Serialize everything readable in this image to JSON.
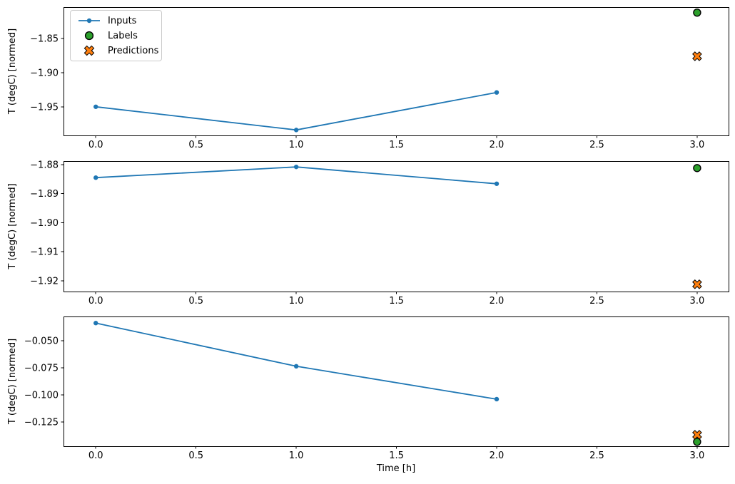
{
  "figure": {
    "background": "#ffffff",
    "colors": {
      "line": "#1f77b4",
      "labels": "#2ca02c",
      "predictions": "#ff7f0e",
      "edge": "#000000",
      "spine": "#000000",
      "text": "#000000",
      "legend_border": "#cbcbcb"
    },
    "legend": {
      "position": "upper-left",
      "items": [
        {
          "label": "Inputs",
          "marker": "line-dot",
          "color": "#1f77b4"
        },
        {
          "label": "Labels",
          "marker": "circle",
          "color": "#2ca02c",
          "edge": "#000000"
        },
        {
          "label": "Predictions",
          "marker": "X",
          "color": "#ff7f0e",
          "edge": "#000000"
        }
      ]
    }
  },
  "chart_data": [
    {
      "type": "line",
      "ylabel": "T (degC) [normed]",
      "xlabel": "",
      "xlim": [
        -0.161,
        3.157
      ],
      "ylim": [
        -1.992,
        -1.804
      ],
      "grid": false,
      "xticks": [
        {
          "v": 0,
          "label": "0.0"
        },
        {
          "v": 0.5,
          "label": "0.5"
        },
        {
          "v": 1,
          "label": "1.0"
        },
        {
          "v": 1.5,
          "label": "1.5"
        },
        {
          "v": 2,
          "label": "2.0"
        },
        {
          "v": 2.5,
          "label": "2.5"
        },
        {
          "v": 3,
          "label": "3.0"
        }
      ],
      "yticks": [
        {
          "v": -1.85,
          "label": "−1.85"
        },
        {
          "v": -1.9,
          "label": "−1.90"
        },
        {
          "v": -1.95,
          "label": "−1.95"
        }
      ],
      "series": [
        {
          "name": "Inputs",
          "type": "line",
          "marker": "dot",
          "x": [
            0,
            1,
            2
          ],
          "y": [
            -1.95,
            -1.984,
            -1.929
          ]
        },
        {
          "name": "Labels",
          "type": "scatter",
          "marker": "circle",
          "x": [
            3
          ],
          "y": [
            -1.812
          ]
        },
        {
          "name": "Predictions",
          "type": "scatter",
          "marker": "X",
          "x": [
            3
          ],
          "y": [
            -1.876
          ]
        }
      ]
    },
    {
      "type": "line",
      "ylabel": "T (degC) [normed]",
      "xlabel": "",
      "xlim": [
        -0.161,
        3.157
      ],
      "ylim": [
        -1.9237,
        -1.8788
      ],
      "grid": false,
      "xticks": [
        {
          "v": 0,
          "label": "0.0"
        },
        {
          "v": 0.5,
          "label": "0.5"
        },
        {
          "v": 1,
          "label": "1.0"
        },
        {
          "v": 1.5,
          "label": "1.5"
        },
        {
          "v": 2,
          "label": "2.0"
        },
        {
          "v": 2.5,
          "label": "2.5"
        },
        {
          "v": 3,
          "label": "3.0"
        }
      ],
      "yticks": [
        {
          "v": -1.88,
          "label": "−1.88"
        },
        {
          "v": -1.89,
          "label": "−1.89"
        },
        {
          "v": -1.9,
          "label": "−1.90"
        },
        {
          "v": -1.91,
          "label": "−1.91"
        },
        {
          "v": -1.92,
          "label": "−1.92"
        }
      ],
      "series": [
        {
          "name": "Inputs",
          "type": "line",
          "marker": "dot",
          "x": [
            0,
            1,
            2
          ],
          "y": [
            -1.8845,
            -1.8808,
            -1.8866
          ]
        },
        {
          "name": "Labels",
          "type": "scatter",
          "marker": "circle",
          "x": [
            3
          ],
          "y": [
            -1.8812
          ]
        },
        {
          "name": "Predictions",
          "type": "scatter",
          "marker": "X",
          "x": [
            3
          ],
          "y": [
            -1.9212
          ]
        }
      ]
    },
    {
      "type": "line",
      "ylabel": "T (degC) [normed]",
      "xlabel": "Time [h]",
      "xlim": [
        -0.161,
        3.157
      ],
      "ylim": [
        -0.1476,
        -0.0274
      ],
      "grid": false,
      "xticks": [
        {
          "v": 0,
          "label": "0.0"
        },
        {
          "v": 0.5,
          "label": "0.5"
        },
        {
          "v": 1,
          "label": "1.0"
        },
        {
          "v": 1.5,
          "label": "1.5"
        },
        {
          "v": 2,
          "label": "2.0"
        },
        {
          "v": 2.5,
          "label": "2.5"
        },
        {
          "v": 3,
          "label": "3.0"
        }
      ],
      "yticks": [
        {
          "v": -0.05,
          "label": "−0.050"
        },
        {
          "v": -0.075,
          "label": "−0.075"
        },
        {
          "v": -0.1,
          "label": "−0.100"
        },
        {
          "v": -0.125,
          "label": "−0.125"
        }
      ],
      "series": [
        {
          "name": "Inputs",
          "type": "line",
          "marker": "dot",
          "x": [
            0,
            1,
            2
          ],
          "y": [
            -0.0335,
            -0.0735,
            -0.104
          ]
        },
        {
          "name": "Labels",
          "type": "scatter",
          "marker": "circle",
          "x": [
            3
          ],
          "y": [
            -0.1435
          ]
        },
        {
          "name": "Predictions",
          "type": "scatter",
          "marker": "X",
          "x": [
            3
          ],
          "y": [
            -0.137
          ]
        }
      ]
    }
  ]
}
